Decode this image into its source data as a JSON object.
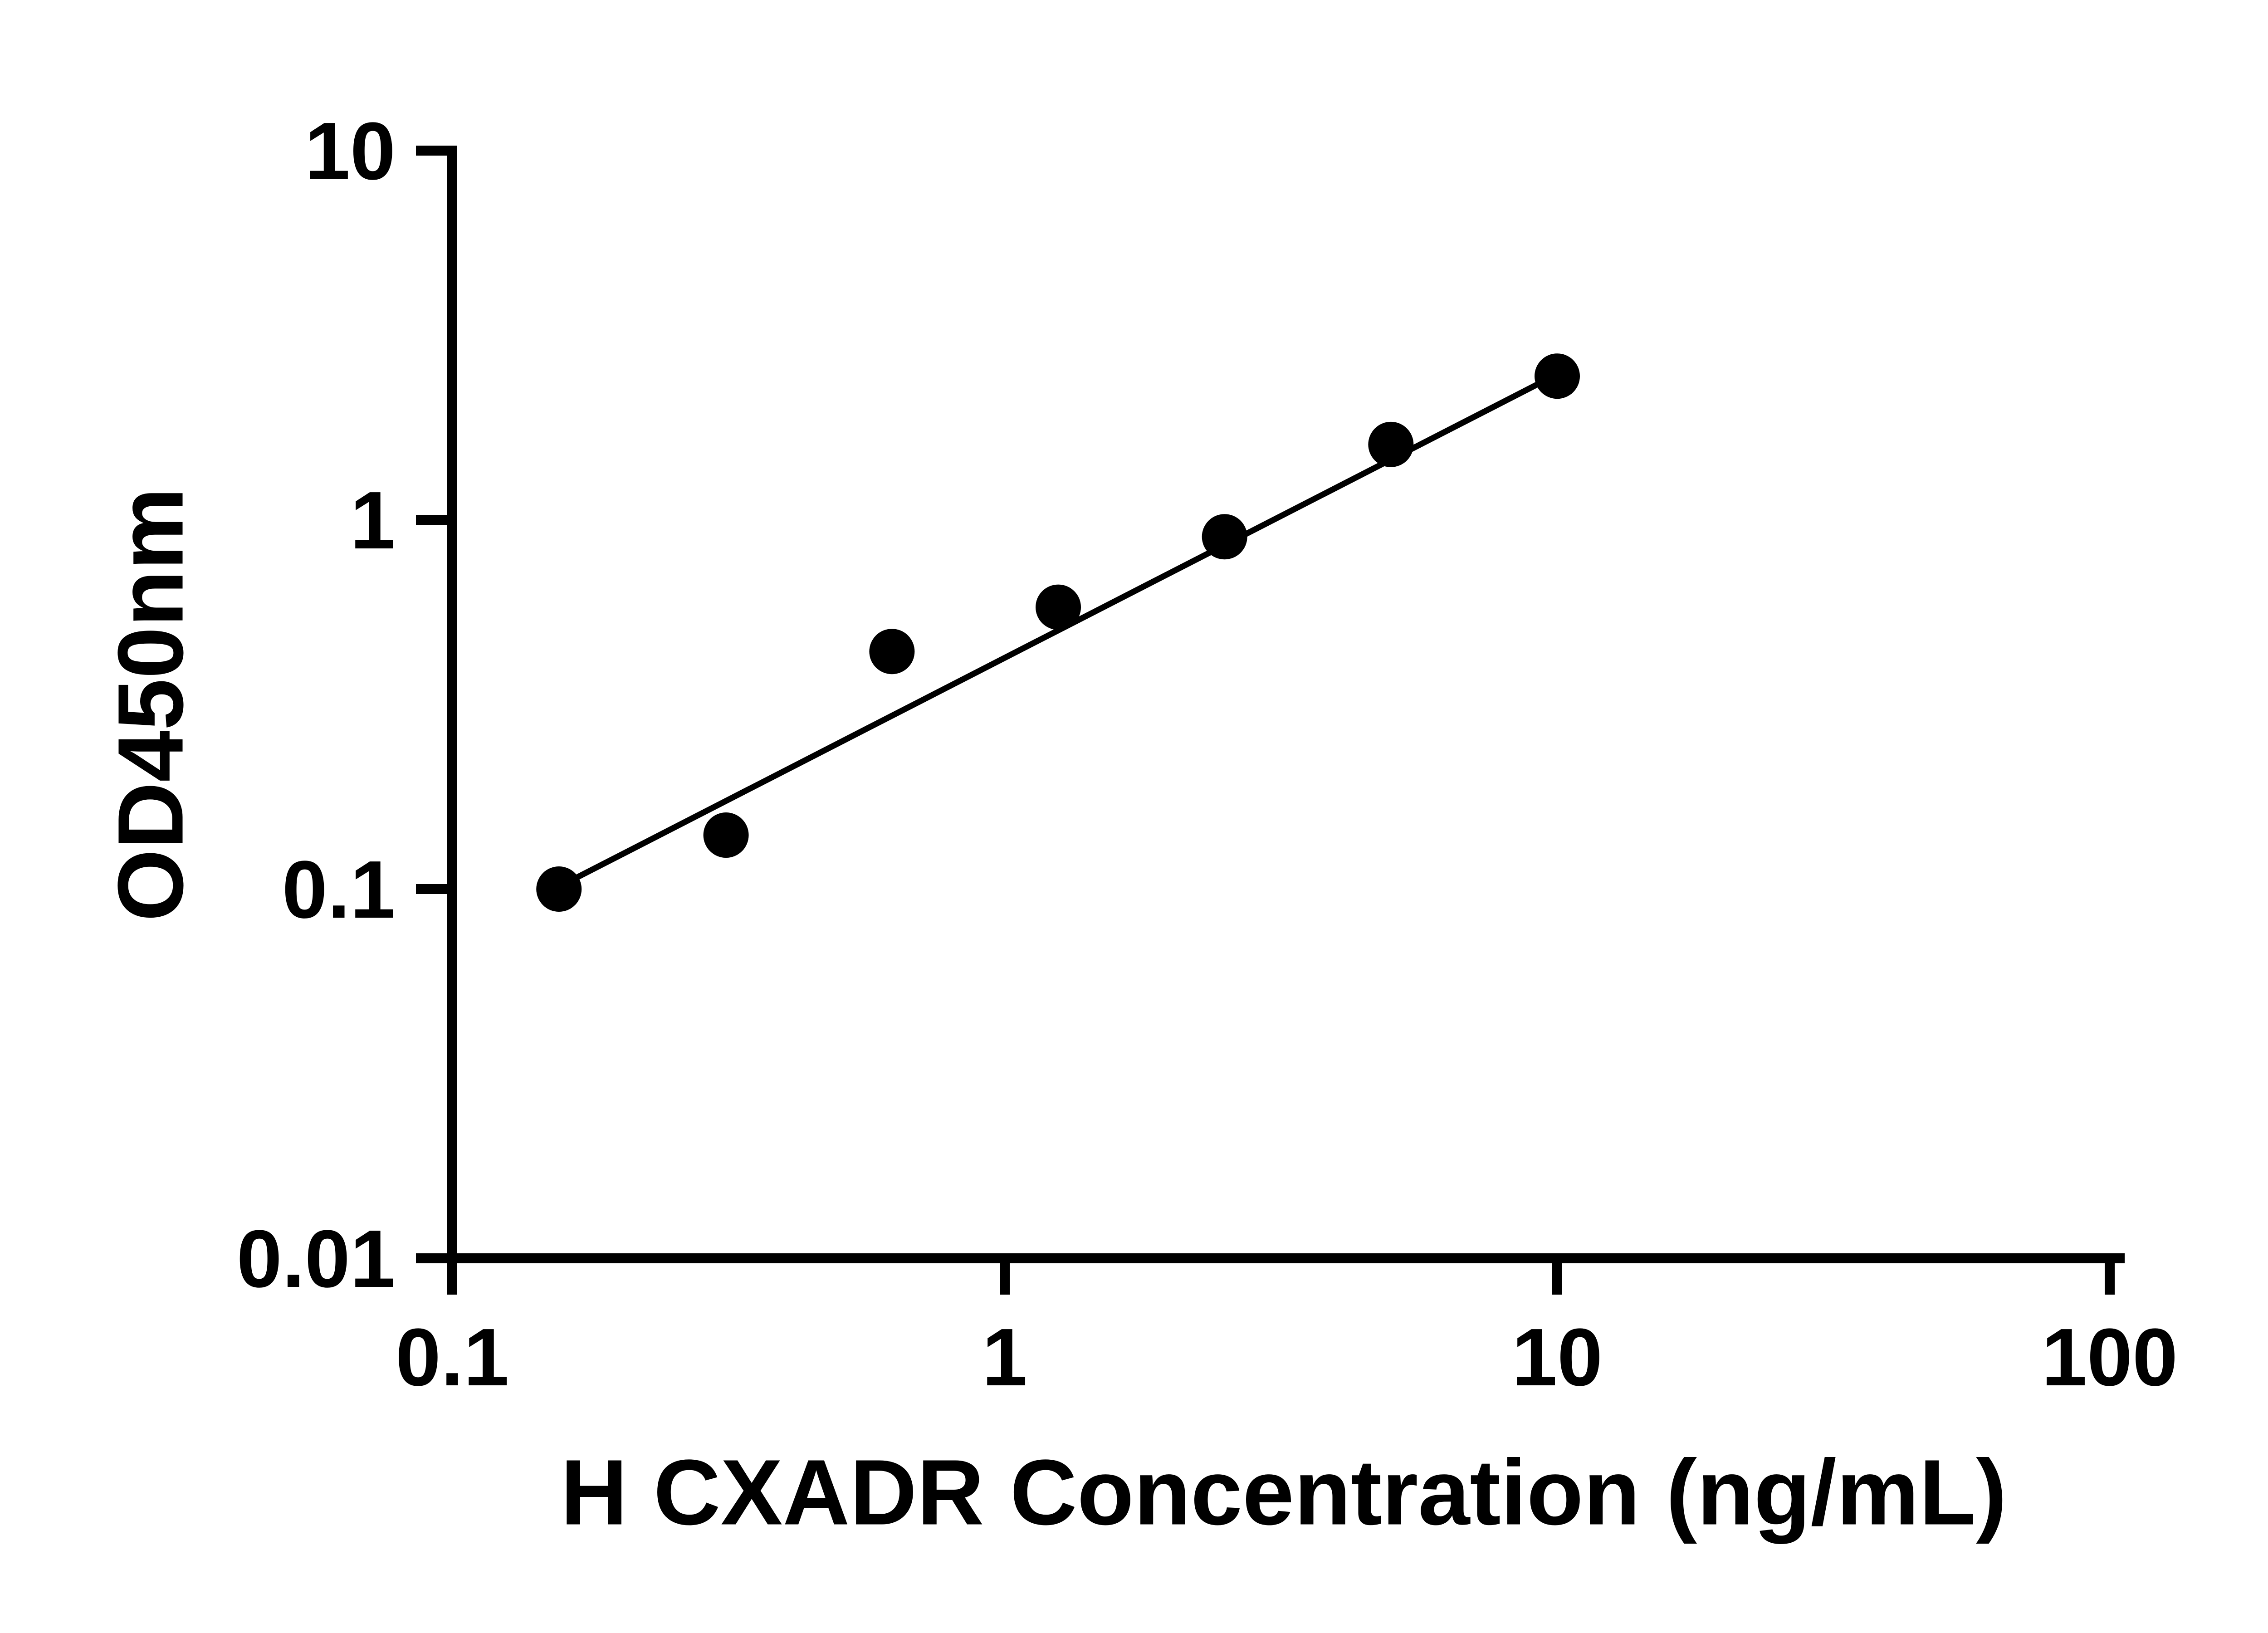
{
  "page": {
    "background": "#ffffff"
  },
  "chart_data": {
    "type": "scatter",
    "title": "",
    "xlabel": "H CXADR Concentration (ng/mL)",
    "ylabel": "OD450nm",
    "xscale": "log",
    "yscale": "log",
    "xlim": [
      0.1,
      100
    ],
    "ylim": [
      0.01,
      10
    ],
    "x_tick_values": [
      0.1,
      1,
      10,
      100
    ],
    "x_tick_labels": [
      "0.1",
      "1",
      "10",
      "100"
    ],
    "y_tick_values": [
      0.01,
      0.1,
      1,
      10
    ],
    "y_tick_labels": [
      "0.01",
      "0.1",
      "1",
      "10"
    ],
    "grid": false,
    "legend": null,
    "x": [
      0.156,
      0.313,
      0.625,
      1.25,
      2.5,
      5,
      10
    ],
    "y": [
      0.1,
      0.14,
      0.44,
      0.58,
      0.9,
      1.6,
      2.45
    ],
    "trend_line": {
      "x": [
        0.155,
        10
      ],
      "y": [
        0.101,
        2.48
      ]
    },
    "marker_color": "#000000",
    "line_color": "#000000",
    "axis_color": "#000000"
  }
}
